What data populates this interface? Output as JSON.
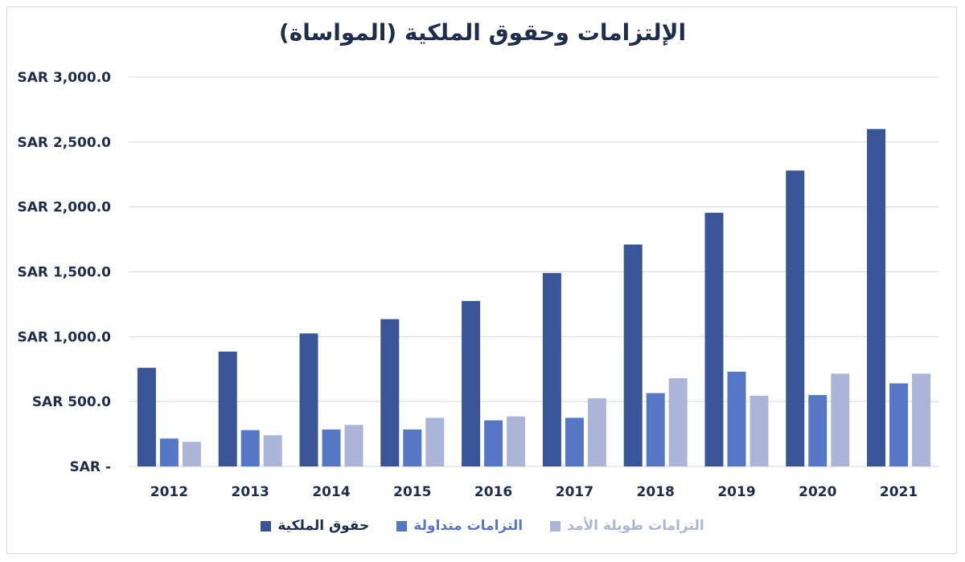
{
  "chart_data": {
    "type": "bar",
    "title": "الإلتزامات وحقوق الملكية (المواساة)",
    "categories": [
      "2012",
      "2013",
      "2014",
      "2015",
      "2016",
      "2017",
      "2018",
      "2019",
      "2020",
      "2021"
    ],
    "ylim": [
      0,
      3000
    ],
    "yticks": [
      0,
      500,
      1000,
      1500,
      2000,
      2500,
      3000
    ],
    "ytick_labels": [
      "SAR -",
      "SAR 500.0",
      "SAR 1,000.0",
      "SAR 1,500.0",
      "SAR 2,000.0",
      "SAR 2,500.0",
      "SAR 3,000.0"
    ],
    "grid": true,
    "legend_position": "bottom",
    "series": [
      {
        "name": "حقوق الملكية",
        "color": "#3a5597",
        "values": [
          760,
          885,
          1025,
          1135,
          1275,
          1490,
          1710,
          1955,
          2280,
          2600
        ]
      },
      {
        "name": "التزامات متداولة",
        "color": "#5577c6",
        "values": [
          215,
          280,
          285,
          285,
          355,
          375,
          565,
          730,
          550,
          640
        ]
      },
      {
        "name": "التزامات طويلة الأمد",
        "color": "#aab5d8",
        "values": [
          190,
          240,
          320,
          375,
          385,
          525,
          680,
          545,
          715,
          715
        ]
      }
    ]
  }
}
